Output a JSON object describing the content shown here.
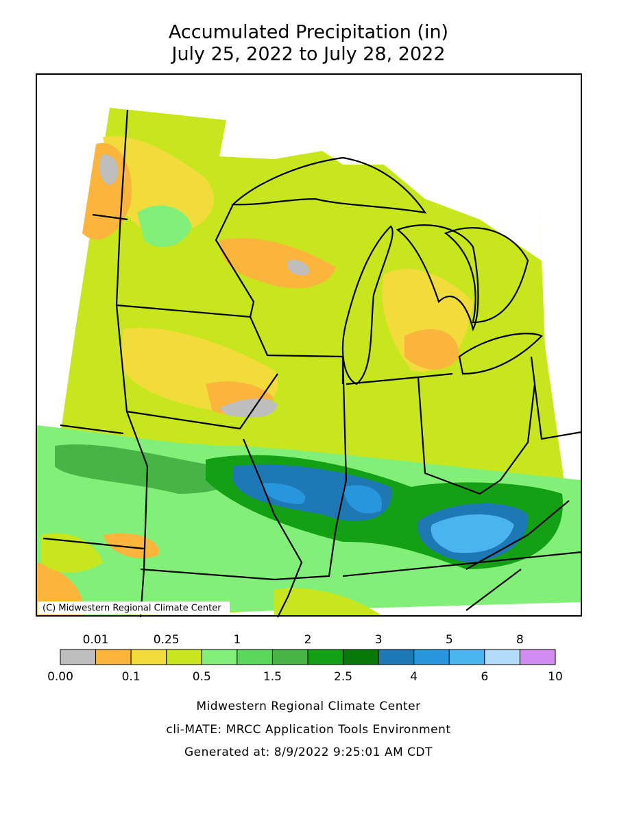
{
  "title": [
    "Accumulated Precipitation (in)",
    "July 25, 2022 to July 28, 2022"
  ],
  "map": {
    "credit": "(C) Midwestern Regional Climate Center"
  },
  "legend": {
    "labels": [
      "0.00",
      "0.01",
      "0.1",
      "0.25",
      "0.5",
      "1",
      "1.5",
      "2",
      "2.5",
      "3",
      "4",
      "5",
      "6",
      "8",
      "10"
    ],
    "colors": [
      "#bebebe",
      "#fbb43c",
      "#f2dc3c",
      "#c8e61e",
      "#82f078",
      "#5ad75a",
      "#46b446",
      "#14a014",
      "#087808",
      "#1e78b4",
      "#2896dc",
      "#4bb4f0",
      "#b4dcfa",
      "#d28cf0"
    ]
  },
  "footer": [
    "Midwestern Regional Climate Center",
    "cli-MATE: MRCC Application Tools Environment",
    "Generated at: 8/9/2022 9:25:01 AM CDT"
  ]
}
